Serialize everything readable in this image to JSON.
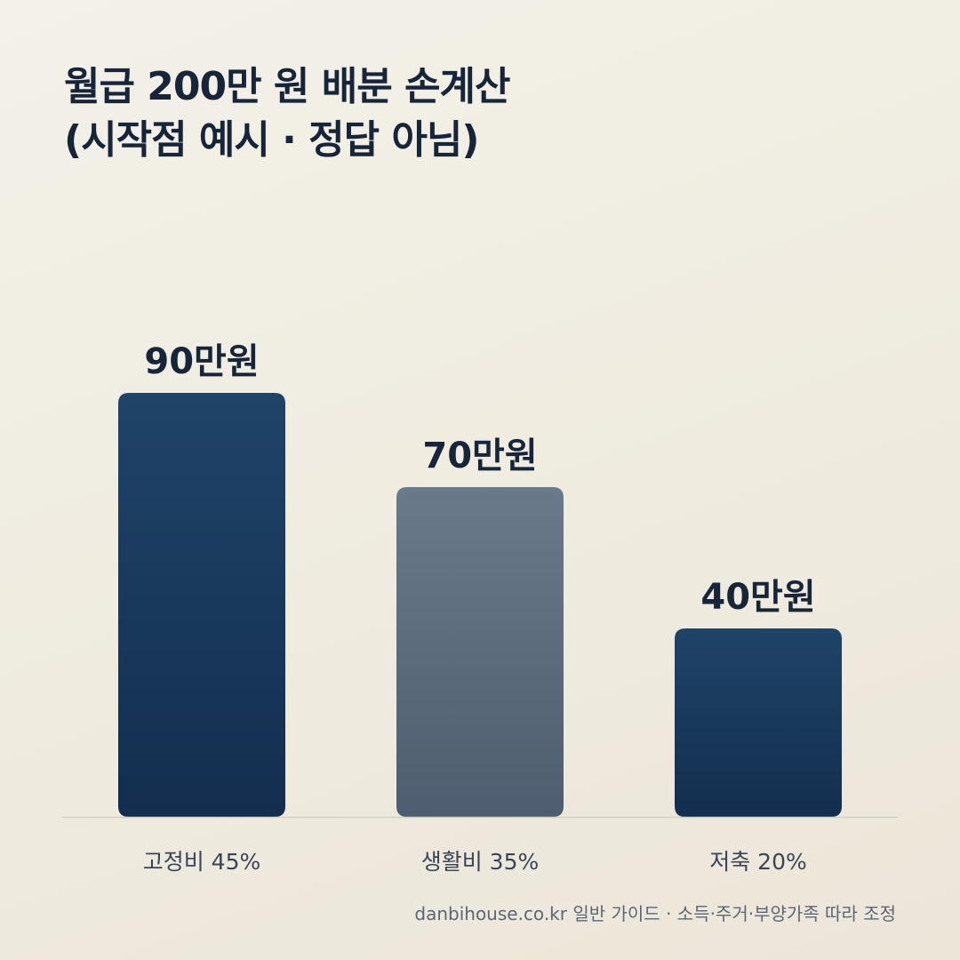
{
  "title": {
    "line1": "월급 200만 원 배분 손계산",
    "line2": "(시작점 예시 · 정답 아님)"
  },
  "chart_data": {
    "type": "bar",
    "categories": [
      "고정비 45%",
      "생활비 35%",
      "저축 20%"
    ],
    "values": [
      90,
      70,
      40
    ],
    "value_labels": [
      "90만원",
      "70만원",
      "40만원"
    ],
    "unit": "만원",
    "ylim": [
      0,
      100
    ],
    "grid": false,
    "legend": "none",
    "bar_colors": [
      [
        "#1f4468",
        "#132e4f"
      ],
      [
        "#6b7a8a",
        "#4e5d6f"
      ],
      [
        "#1f4468",
        "#132e4f"
      ]
    ],
    "axis_color": "#d3d0c6",
    "label_color": "#17253a",
    "category_color": "#3a4556"
  },
  "footer": "danbihouse.co.kr 일반 가이드 · 소득·주거·부양가족 따라 조정"
}
